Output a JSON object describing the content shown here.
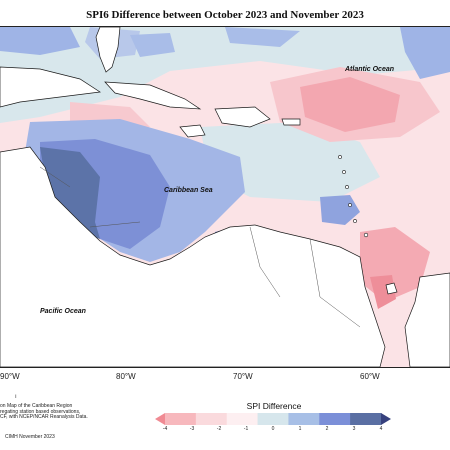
{
  "title": "SPI6 Difference between October 2023 and November 2023",
  "map": {
    "ocean_labels": {
      "atlantic": "Atlantic Ocean",
      "caribbean": "Caribbean Sea",
      "pacific": "Pacific Ocean"
    },
    "longitude_labels": [
      "90°W",
      "80°W",
      "70°W",
      "60°W"
    ]
  },
  "notes": {
    "tick": "ı",
    "line1": "on Map of the Caribbean Region",
    "line2": "regating station based observations,",
    "line3": "CF, with NCEP/NCAR Reanalysis Data.",
    "copyright": "CIMH November 2023"
  },
  "legend": {
    "title": "SPI Difference",
    "tick_labels": [
      "-4",
      "-3",
      "-2",
      "-1",
      "0",
      "1",
      "2",
      "3",
      "4"
    ],
    "colors": [
      "#f08a93",
      "#f7b8bd",
      "#fadadd",
      "#fdeff1",
      "#d6e6ec",
      "#a7bfe6",
      "#7b8fd8",
      "#5a6fa3",
      "#37417e"
    ]
  },
  "colors": {
    "land": "#ffffff",
    "coastline": "#1a1a1a"
  }
}
